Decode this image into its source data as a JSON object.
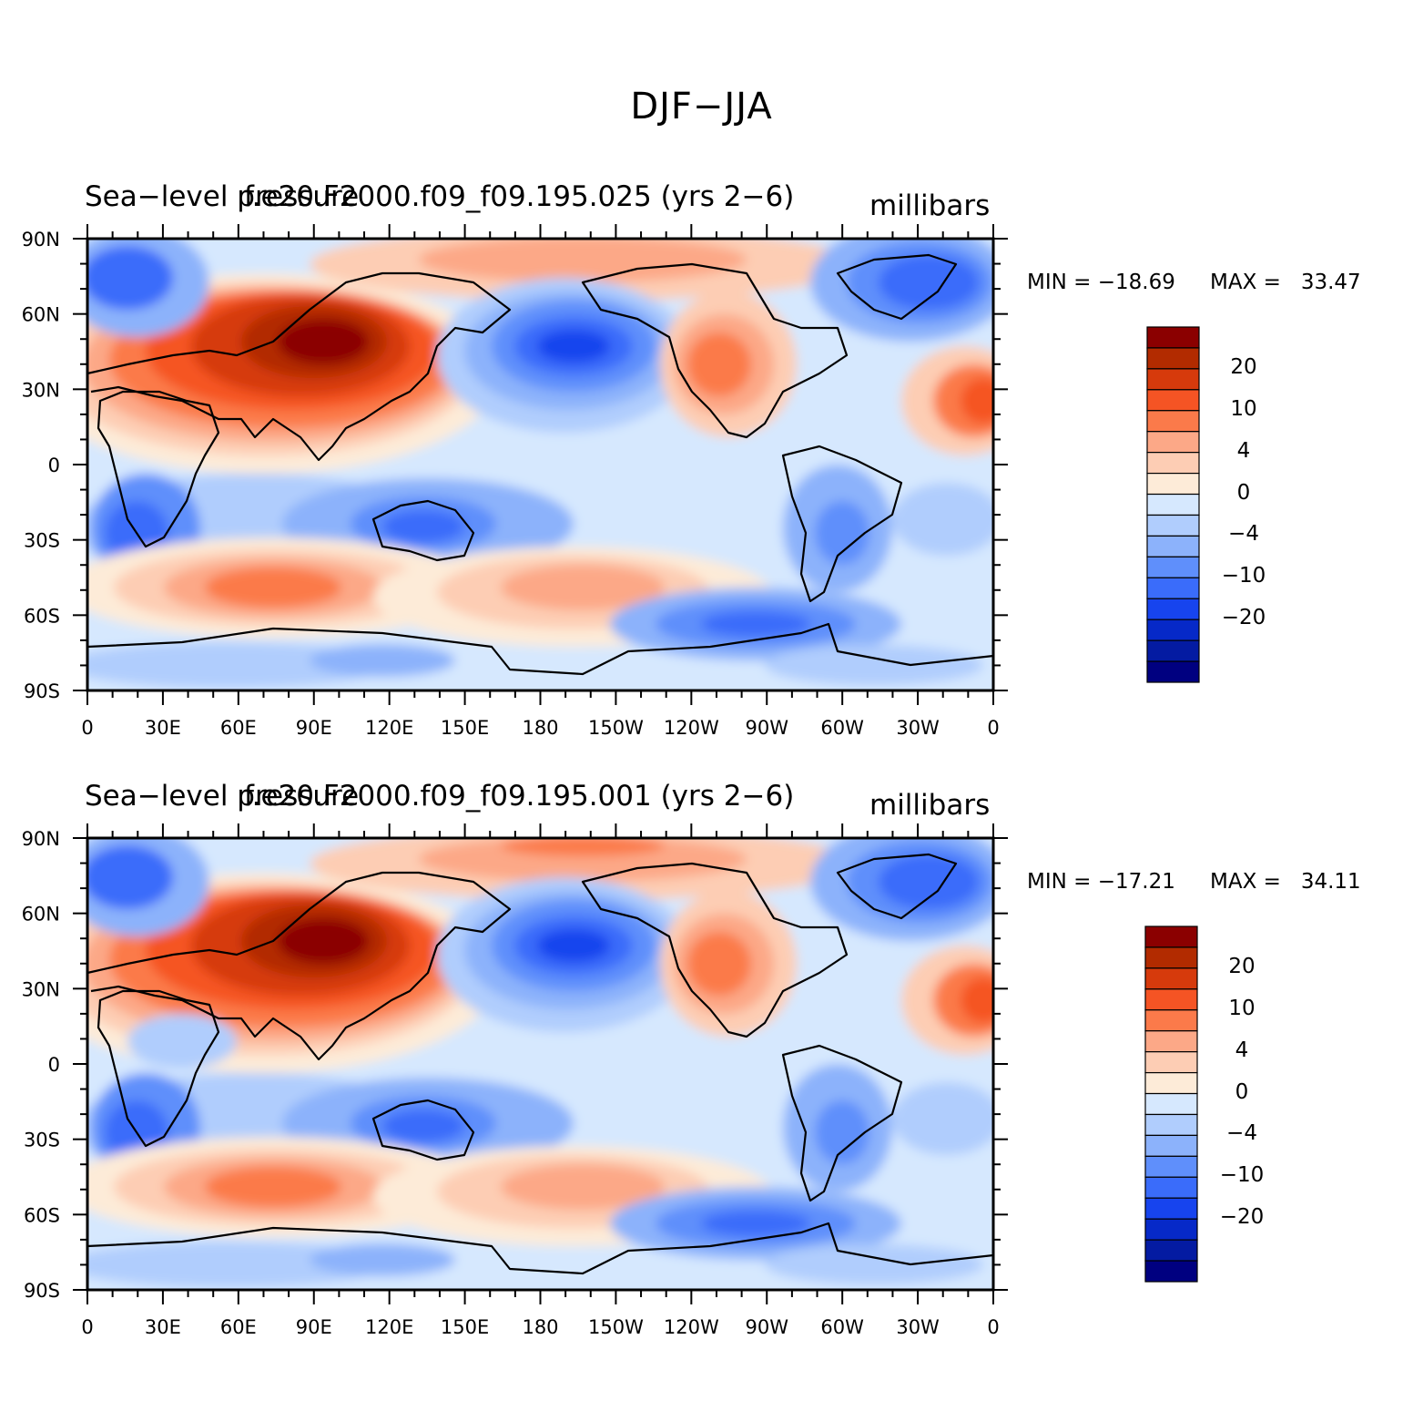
{
  "figure": {
    "title": "DJF−JJA"
  },
  "panels": [
    {
      "left_string": "Sea−level pressure",
      "center_string": "f.e20.F2000.f09_f09.195.025 (yrs 2−6)",
      "right_string": "millibars",
      "min_label": "MIN = −18.69",
      "max_label": "MAX =   33.47",
      "stats": {
        "min": -18.69,
        "max": 33.47
      }
    },
    {
      "left_string": "Sea−level pressure",
      "center_string": "f.e20.F2000.f09_f09.195.001 (yrs 2−6)",
      "right_string": "millibars",
      "min_label": "MIN = −17.21",
      "max_label": "MAX =   34.11",
      "stats": {
        "min": -17.21,
        "max": 34.11
      }
    }
  ],
  "map": {
    "projection": "cylindrical-equidistant",
    "lon_range": [
      0,
      360
    ],
    "lat_range": [
      -90,
      90
    ],
    "lat_ticks": [
      "90N",
      "60N",
      "30N",
      "0",
      "30S",
      "60S",
      "90S"
    ],
    "lon_ticks": [
      "0",
      "30E",
      "60E",
      "90E",
      "120E",
      "150E",
      "180",
      "150W",
      "120W",
      "90W",
      "60W",
      "30W",
      "0"
    ]
  },
  "colorbar": {
    "colors": [
      "#8b0000",
      "#b22b00",
      "#d63a0c",
      "#f55424",
      "#fb7a4a",
      "#fca887",
      "#fdcdb4",
      "#fdebd8",
      "#d6e8fe",
      "#b0cdfd",
      "#8cb2fb",
      "#5f8ffb",
      "#3a6cfa",
      "#1744ee",
      "#0629c8",
      "#041ba2",
      "#000080"
    ],
    "labels": [
      "20",
      "10",
      "4",
      "0",
      "−4",
      "−10",
      "−20"
    ]
  }
}
